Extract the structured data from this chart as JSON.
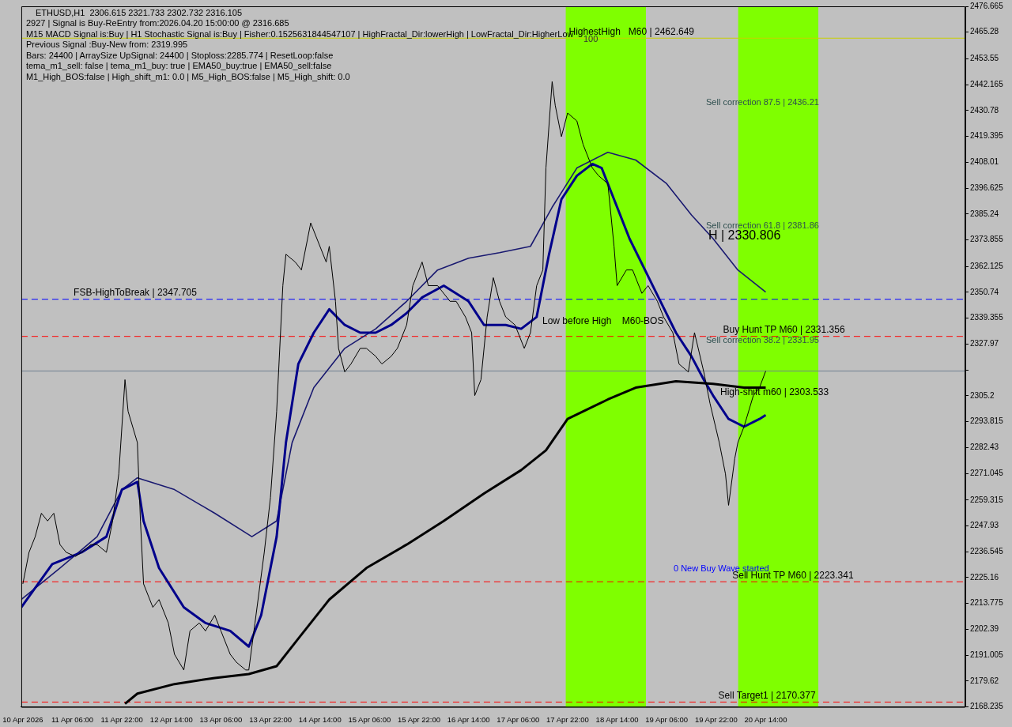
{
  "chart_data": {
    "type": "line",
    "title": "ETHUSD,H1  2306.615 2321.733 2302.732 2316.105",
    "xlim": [
      "2026-04-10T13:30",
      "2026-04-23T06:30"
    ],
    "xticks": [
      {
        "value": "2026-04-10T14:00",
        "label": "10 Apr 2026"
      },
      {
        "value": "2026-04-11T06:00",
        "label": "11 Apr 06:00"
      },
      {
        "value": "2026-04-11T22:00",
        "label": "11 Apr 22:00"
      },
      {
        "value": "2026-04-12T14:00",
        "label": "12 Apr 14:00"
      },
      {
        "value": "2026-04-13T06:00",
        "label": "13 Apr 06:00"
      },
      {
        "value": "2026-04-13T22:00",
        "label": "13 Apr 22:00"
      },
      {
        "value": "2026-04-14T14:00",
        "label": "14 Apr 14:00"
      },
      {
        "value": "2026-04-15T06:00",
        "label": "15 Apr 06:00"
      },
      {
        "value": "2026-04-15T22:00",
        "label": "15 Apr 22:00"
      },
      {
        "value": "2026-04-16T14:00",
        "label": "16 Apr 14:00"
      },
      {
        "value": "2026-04-17T06:00",
        "label": "17 Apr 06:00"
      },
      {
        "value": "2026-04-17T22:00",
        "label": "17 Apr 22:00"
      },
      {
        "value": "2026-04-18T14:00",
        "label": "18 Apr 14:00"
      },
      {
        "value": "2026-04-19T06:00",
        "label": "19 Apr 06:00"
      },
      {
        "value": "2026-04-19T22:00",
        "label": "19 Apr 22:00"
      },
      {
        "value": "2026-04-20T14:00",
        "label": "20 Apr 14:00"
      }
    ],
    "ylim": [
      2168.235,
      2476.665
    ],
    "yticks": [
      2168.235,
      2179.62,
      2191.005,
      2202.39,
      2213.775,
      2225.16,
      2236.545,
      2247.93,
      2259.315,
      2271.045,
      2282.43,
      2293.815,
      2305.2,
      {
        "value": 2316.585,
        "label": null
      },
      2327.97,
      2339.355,
      2350.74,
      2362.125,
      2373.855,
      2385.24,
      2396.625,
      2408.01,
      2419.395,
      2430.78,
      2442.165,
      2453.55,
      2465.28,
      2476.665
    ],
    "grid": false,
    "legend": false,
    "marker": "none",
    "series": [
      {
        "color": "#000000",
        "x": [
          "2026-04-10T14:00",
          "2026-04-10T16:00",
          "2026-04-10T18:00",
          "2026-04-10T20:00",
          "2026-04-10T22:00",
          "2026-04-11T00:00",
          "2026-04-11T02:00",
          "2026-04-11T04:00",
          "2026-04-11T07:00",
          "2026-04-11T09:00",
          "2026-04-11T12:00",
          "2026-04-11T14:00",
          "2026-04-11T17:00",
          "2026-04-11T19:00",
          "2026-04-11T21:00",
          "2026-04-11T23:00",
          "2026-04-12T00:00",
          "2026-04-12T03:00",
          "2026-04-12T04:00",
          "2026-04-12T05:00",
          "2026-04-12T08:00",
          "2026-04-12T10:00",
          "2026-04-12T13:00",
          "2026-04-12T15:00",
          "2026-04-12T18:00",
          "2026-04-12T20:00",
          "2026-04-12T23:00",
          "2026-04-13T01:00",
          "2026-04-13T04:00",
          "2026-04-13T06:00",
          "2026-04-13T09:00",
          "2026-04-13T11:00",
          "2026-04-13T14:00",
          "2026-04-13T15:00",
          "2026-04-13T17:00",
          "2026-04-13T20:00",
          "2026-04-13T22:00",
          "2026-04-14T00:00",
          "2026-04-14T02:00",
          "2026-04-14T03:00",
          "2026-04-14T06:00",
          "2026-04-14T08:00",
          "2026-04-14T11:00",
          "2026-04-14T13:00",
          "2026-04-14T16:00",
          "2026-04-14T17:00",
          "2026-04-14T19:00",
          "2026-04-14T20:00",
          "2026-04-14T22:00",
          "2026-04-15T00:00",
          "2026-04-15T03:00",
          "2026-04-15T05:00",
          "2026-04-15T08:00",
          "2026-04-15T10:00",
          "2026-04-15T13:00",
          "2026-04-15T15:00",
          "2026-04-15T18:00",
          "2026-04-15T20:00",
          "2026-04-15T23:00",
          "2026-04-16T01:00",
          "2026-04-16T04:00",
          "2026-04-16T08:00",
          "2026-04-16T10:00",
          "2026-04-16T13:00",
          "2026-04-16T15:00",
          "2026-04-16T16:00",
          "2026-04-16T18:00",
          "2026-04-16T20:00",
          "2026-04-16T22:00",
          "2026-04-17T00:00",
          "2026-04-17T02:00",
          "2026-04-17T05:00",
          "2026-04-17T08:00",
          "2026-04-17T10:00",
          "2026-04-17T12:00",
          "2026-04-17T14:00",
          "2026-04-17T15:00",
          "2026-04-17T17:00",
          "2026-04-17T18:00",
          "2026-04-17T20:00",
          "2026-04-17T22:00",
          "2026-04-18T01:00",
          "2026-04-18T03:00",
          "2026-04-18T06:00",
          "2026-04-18T08:00",
          "2026-04-18T11:00",
          "2026-04-18T13:00",
          "2026-04-18T14:00",
          "2026-04-18T17:00",
          "2026-04-18T19:00",
          "2026-04-18T22:00",
          "2026-04-19T00:00",
          "2026-04-19T03:00",
          "2026-04-19T05:00",
          "2026-04-19T08:00",
          "2026-04-19T10:00",
          "2026-04-19T13:00",
          "2026-04-19T15:00",
          "2026-04-19T18:00",
          "2026-04-19T20:00",
          "2026-04-19T23:00",
          "2026-04-20T01:00",
          "2026-04-20T02:00",
          "2026-04-20T04:00",
          "2026-04-20T05:00",
          "2026-04-20T07:00",
          "2026-04-20T10:00",
          "2026-04-20T12:00",
          "2026-04-20T14:00"
        ],
        "values": [
          2222.4,
          2236.3,
          2243.2,
          2253.5,
          2250.1,
          2253.5,
          2239.7,
          2236.3,
          2234.5,
          2236.3,
          2239.7,
          2239.7,
          2236.3,
          2250.1,
          2270.8,
          2312.3,
          2298.4,
          2284.6,
          2250.1,
          2222.4,
          2212.1,
          2215.5,
          2205.2,
          2191.4,
          2184.5,
          2201.7,
          2205.2,
          2201.7,
          2208.6,
          2201.7,
          2191.4,
          2187.9,
          2184.5,
          2184.5,
          2205.2,
          2236.3,
          2260.4,
          2298.4,
          2353.7,
          2367.5,
          2364.1,
          2360.6,
          2381.3,
          2374.4,
          2364.1,
          2371.0,
          2346.8,
          2326.1,
          2315.7,
          2319.2,
          2326.1,
          2326.1,
          2322.6,
          2319.2,
          2322.6,
          2326.1,
          2336.4,
          2353.7,
          2364.1,
          2353.7,
          2353.7,
          2346.8,
          2346.8,
          2339.9,
          2333.0,
          2305.3,
          2312.3,
          2339.9,
          2357.2,
          2346.8,
          2339.9,
          2336.4,
          2326.1,
          2333.0,
          2353.7,
          2360.6,
          2405.5,
          2443.5,
          2433.1,
          2419.3,
          2429.7,
          2426.2,
          2415.9,
          2405.5,
          2402.1,
          2398.6,
          2371.0,
          2353.7,
          2360.6,
          2360.6,
          2350.3,
          2353.7,
          2346.8,
          2339.9,
          2333.0,
          2319.2,
          2315.7,
          2333.0,
          2315.7,
          2301.9,
          2284.6,
          2270.8,
          2257.0,
          2277.6,
          2284.6,
          2291.6,
          2305.3,
          2308.8,
          2316.1
        ]
      },
      {
        "color": "#000000",
        "x": [
          "2026-04-11T23:00",
          "2026-04-12T03:00",
          "2026-04-12T15:00",
          "2026-04-13T04:00",
          "2026-04-13T15:00",
          "2026-04-14T00:00",
          "2026-04-14T07:00",
          "2026-04-14T17:00",
          "2026-04-15T05:00",
          "2026-04-15T18:00",
          "2026-04-16T06:00",
          "2026-04-16T19:00",
          "2026-04-17T07:00",
          "2026-04-17T15:00",
          "2026-04-17T22:00",
          "2026-04-18T11:00",
          "2026-04-18T20:00",
          "2026-04-19T09:00",
          "2026-04-19T21:00",
          "2026-04-20T07:00",
          "2026-04-20T14:00"
        ],
        "values": [
          2169.6,
          2174.1,
          2178.3,
          2181.0,
          2182.7,
          2186.2,
          2198.3,
          2215.5,
          2229.4,
          2239.7,
          2250.1,
          2262.2,
          2272.5,
          2281.2,
          2295.0,
          2303.6,
          2308.8,
          2311.6,
          2310.5,
          2308.8,
          2308.8
        ]
      },
      {
        "color": "#00008b",
        "x": [
          "2026-04-10T13:30",
          "2026-04-10T23:30",
          "2026-04-11T09:00",
          "2026-04-11T17:00",
          "2026-04-11T22:00",
          "2026-04-12T03:00",
          "2026-04-12T05:00",
          "2026-04-12T10:00",
          "2026-04-12T18:00",
          "2026-04-13T01:00",
          "2026-04-13T09:00",
          "2026-04-13T15:00",
          "2026-04-13T19:00",
          "2026-04-14T00:00",
          "2026-04-14T03:00",
          "2026-04-14T07:00",
          "2026-04-14T12:00",
          "2026-04-14T17:00",
          "2026-04-14T22:00",
          "2026-04-15T03:00",
          "2026-04-15T08:00",
          "2026-04-15T13:00",
          "2026-04-15T18:00",
          "2026-04-15T23:00",
          "2026-04-16T06:00",
          "2026-04-16T14:00",
          "2026-04-16T19:00",
          "2026-04-17T02:00",
          "2026-04-17T07:00",
          "2026-04-17T12:00",
          "2026-04-17T16:00",
          "2026-04-17T20:00",
          "2026-04-18T01:00",
          "2026-04-18T06:00",
          "2026-04-18T09:00",
          "2026-04-18T13:00",
          "2026-04-18T18:00",
          "2026-04-18T23:00",
          "2026-04-19T04:00",
          "2026-04-19T09:00",
          "2026-04-19T14:00",
          "2026-04-19T18:00",
          "2026-04-19T21:00",
          "2026-04-20T02:00",
          "2026-04-20T07:00",
          "2026-04-20T12:00",
          "2026-04-20T14:00"
        ],
        "values": [
          2212.1,
          2231.1,
          2236.3,
          2243.2,
          2263.9,
          2267.3,
          2250.1,
          2229.4,
          2212.1,
          2205.2,
          2201.7,
          2194.8,
          2208.6,
          2243.2,
          2284.6,
          2319.2,
          2333.0,
          2343.3,
          2336.4,
          2333.0,
          2333.0,
          2336.4,
          2341.6,
          2348.5,
          2353.7,
          2346.8,
          2336.4,
          2336.4,
          2334.7,
          2339.9,
          2367.5,
          2391.7,
          2402.1,
          2407.3,
          2405.5,
          2391.7,
          2374.4,
          2360.6,
          2346.8,
          2333.0,
          2322.6,
          2312.3,
          2305.3,
          2295.0,
          2291.6,
          2295.0,
          2296.7
        ]
      },
      {
        "color": "#191970",
        "x": [
          "2026-04-10T13:30",
          "2026-04-11T02:00",
          "2026-04-11T14:00",
          "2026-04-11T22:00",
          "2026-04-12T03:00",
          "2026-04-12T15:00",
          "2026-04-13T04:00",
          "2026-04-13T16:00",
          "2026-04-14T00:00",
          "2026-04-14T05:00",
          "2026-04-14T12:00",
          "2026-04-14T22:00",
          "2026-04-15T08:00",
          "2026-04-15T18:00",
          "2026-04-16T04:00",
          "2026-04-16T14:00",
          "2026-04-17T00:00",
          "2026-04-17T10:00",
          "2026-04-17T17:00",
          "2026-04-18T01:00",
          "2026-04-18T11:00",
          "2026-04-18T20:00",
          "2026-04-19T06:00",
          "2026-04-19T14:00",
          "2026-04-19T21:00",
          "2026-04-20T05:00",
          "2026-04-20T14:00"
        ],
        "values": [
          2215.5,
          2229.4,
          2243.2,
          2263.9,
          2269.1,
          2263.9,
          2253.5,
          2243.2,
          2250.1,
          2284.6,
          2308.8,
          2326.1,
          2334.7,
          2346.8,
          2360.6,
          2365.8,
          2368.2,
          2371.0,
          2388.2,
          2405.5,
          2412.4,
          2409.0,
          2398.6,
          2384.8,
          2374.4,
          2360.6,
          2350.9
        ]
      }
    ],
    "bands": [
      {
        "axis": "x",
        "from": "2026-04-17T21:24",
        "to": "2026-04-18T23:18",
        "color": "#7fff00"
      },
      {
        "axis": "x",
        "from": "2026-04-20T05:06",
        "to": "2026-04-21T07:00",
        "color": "#7fff00"
      }
    ],
    "ref_lines": [
      {
        "axis": "y",
        "value": 2462.649,
        "color": "#c8d000",
        "line_style": "solid"
      },
      {
        "axis": "y",
        "value": 2347.705,
        "color": "#0000ff",
        "line_style": "dashed"
      },
      {
        "axis": "y",
        "value": 2331.356,
        "color": "#ff0000",
        "line_style": "dashed"
      },
      {
        "axis": "y",
        "value": 2316.105,
        "color": "#708090",
        "line_style": "solid"
      },
      {
        "axis": "y",
        "value": 2223.341,
        "color": "#ff0000",
        "line_style": "dashed"
      },
      {
        "axis": "y",
        "value": 2170.377,
        "color": "#ff0000",
        "line_style": "dashed"
      }
    ],
    "annotations": [
      "2927 | Signal is Buy-ReEntry from:2026.04.20 15:00:00 @ 2316.685",
      "M15 MACD Signal is:Buy | H1 Stochastic Signal is:Buy | Fisher:0.1525631844547107 | HighFractal_Dir:lowerHigh | LowFractal_Dir:HigherLow",
      "Previous Signal :Buy-New from: 2319.995",
      "Bars: 24400 | ArraySize UpSignal: 24400 | Stoploss:2285.774 | ResetLoop:false",
      "tema_m1_sell: false | tema_m1_buy: true | EMA50_buy:true | EMA50_sell:false",
      "M1_High_BOS:false | High_shift_m1: 0.0 | M5_High_BOS:false | M5_High_shift: 0.0",
      {
        "text": "HighestHigh   M60 | 2462.649",
        "x": "2026-04-17T22:24",
        "y": 2462.649
      },
      "100",
      {
        "text": "FSB-HighToBreak | 2347.705",
        "x": "2026-04-11T06:24",
        "y": 2347.705
      },
      "Sell correction 87.5 | 2436.21",
      "Sell correction 61.8 | 2381.86",
      "H | 2330.806",
      "Low before High    M60-BOS",
      {
        "text": "Buy Hunt TP M60 | 2331.356",
        "x": "2026-04-20T00:12",
        "y": 2331.356
      },
      "Sell correction 38.2 | 2331.95",
      "High-shift m60 | 2303.533",
      "0 New Buy Wave started",
      {
        "text": "Sell Hunt TP M60 | 2223.341",
        "x": "2026-04-20T03:12",
        "y": 2223.341
      },
      {
        "text": "Sell Target1 | 2170.377",
        "x": "2026-04-19T22:42",
        "y": 2170.377
      }
    ]
  }
}
